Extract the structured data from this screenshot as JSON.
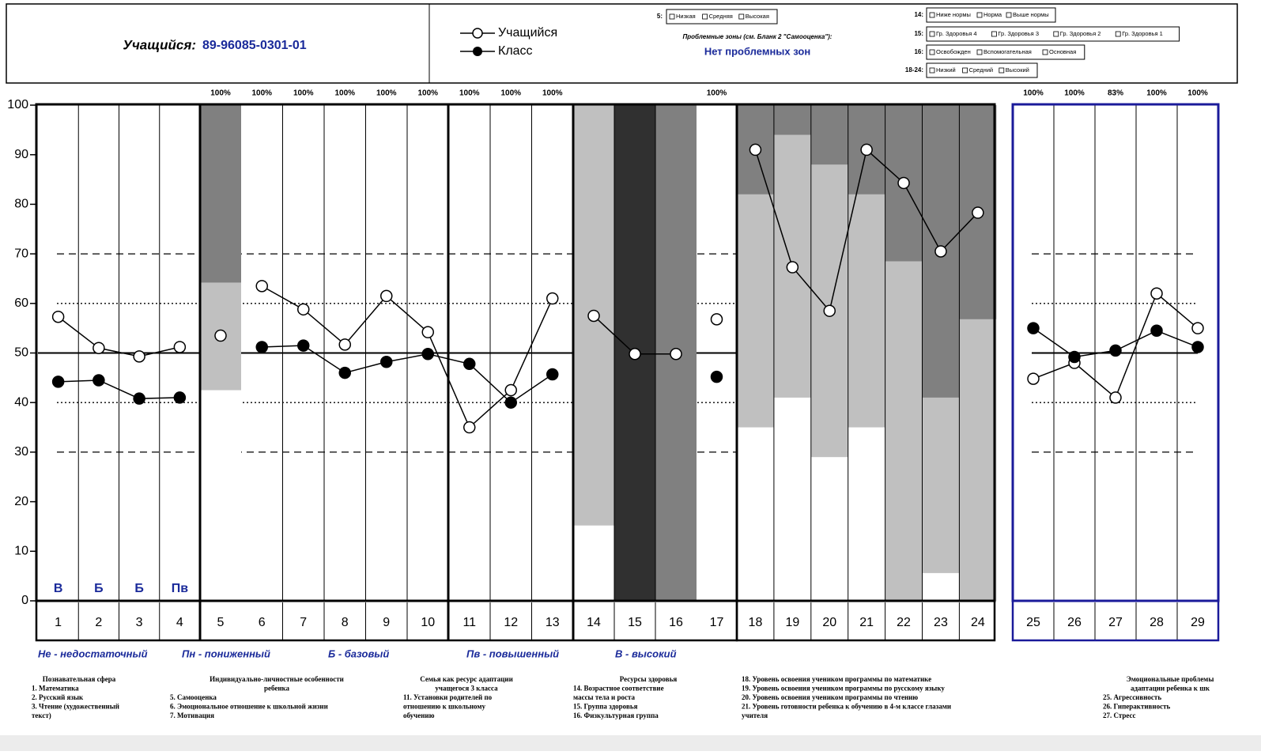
{
  "header": {
    "student_label": "Учащийся:",
    "student_id": "89-96085-0301-01",
    "scale5_label": "5:",
    "scale5_items": [
      "Низкая",
      "Средняя",
      "Высокая"
    ],
    "problem_label": "Проблемные зоны (см. Бланк 2 \"Самооценка\"):",
    "problem_value": "Нет проблемных зон",
    "scales": [
      {
        "label": "14:",
        "items": [
          "Ниже нормы",
          "Норма",
          "Выше нормы"
        ]
      },
      {
        "label": "15:",
        "items": [
          "Гр. Здоровья 4",
          "Гр. Здоровья 3",
          "Гр. Здоровья 2",
          "Гр. Здоровья 1"
        ]
      },
      {
        "label": "16:",
        "items": [
          "Освобожден",
          "Вспомогательная",
          "Основная"
        ]
      },
      {
        "label": "18-24:",
        "items": [
          "Низкий",
          "Средний",
          "Высокий"
        ]
      }
    ]
  },
  "chart_data": {
    "type": "line",
    "ylim": [
      0,
      100
    ],
    "yticks": [
      0,
      10,
      20,
      30,
      40,
      50,
      60,
      70,
      80,
      90,
      100
    ],
    "series_styles": [
      {
        "name": "Учащийся",
        "marker": "open",
        "color": "#000000"
      },
      {
        "name": "Класс",
        "marker": "filled",
        "color": "#000000"
      }
    ],
    "stack_colors": [
      "#ffffff",
      "#c0c0c0",
      "#808080",
      "#303030"
    ],
    "reference_lines": [
      {
        "value": 30,
        "style": "dashed"
      },
      {
        "value": 40,
        "style": "dotted"
      },
      {
        "value": 50,
        "style": "solid"
      },
      {
        "value": 60,
        "style": "dotted"
      },
      {
        "value": 70,
        "style": "dashed"
      }
    ],
    "panels": [
      {
        "categories": [
          "1",
          "2",
          "3",
          "4"
        ],
        "series": [
          [
            57.3,
            51,
            49.3,
            51.2
          ],
          [
            44.2,
            44.5,
            40.8,
            41
          ]
        ],
        "level_labels": [
          "В",
          "Б",
          "Б",
          "Пв"
        ]
      },
      {
        "categories": [
          "5"
        ],
        "series": [
          [
            53.5
          ],
          [
            null
          ]
        ],
        "stack": [
          [
            42.5
          ],
          [
            21.7
          ],
          [
            35.8
          ],
          [
            0
          ]
        ],
        "top_labels": [
          "100%"
        ]
      },
      {
        "categories": [
          "6",
          "7",
          "8",
          "9",
          "10",
          "11",
          "12",
          "13"
        ],
        "series": [
          [
            63.5,
            58.8,
            51.7,
            61.5,
            54.2,
            35,
            42.5,
            61
          ],
          [
            51.2,
            51.5,
            46,
            48.2,
            49.8,
            47.8,
            40,
            45.7
          ]
        ],
        "top_labels": [
          "100%",
          "100%",
          "100%",
          "100%",
          "100%",
          "100%",
          "100%",
          "100%"
        ]
      },
      {
        "categories": [
          "14",
          "15",
          "16"
        ],
        "series": [
          [
            57.5,
            49.8,
            49.8
          ],
          [
            null,
            null,
            null
          ]
        ],
        "stack": [
          [
            15.2,
            0,
            0
          ],
          [
            84.8,
            0,
            0
          ],
          [
            0,
            0,
            100
          ],
          [
            0,
            100,
            0
          ]
        ]
      },
      {
        "categories": [
          "17"
        ],
        "series": [
          [
            56.8
          ],
          [
            45.2
          ]
        ],
        "top_labels": [
          "100%"
        ]
      },
      {
        "categories": [
          "18",
          "19",
          "20",
          "21",
          "22",
          "23",
          "24"
        ],
        "series": [
          [
            91,
            67.3,
            58.5,
            91,
            84.3,
            70.5,
            78.3
          ],
          [
            null,
            null,
            null,
            null,
            null,
            null,
            null
          ]
        ],
        "stack": [
          [
            35,
            41,
            29,
            35,
            0,
            5.6,
            0
          ],
          [
            47,
            53,
            59,
            47,
            68.5,
            35.4,
            56.8
          ],
          [
            18,
            6,
            12,
            18,
            31.5,
            59,
            43.2
          ],
          [
            0,
            0,
            0,
            0,
            0,
            0,
            0
          ]
        ]
      },
      {
        "categories": [
          "25",
          "26",
          "27",
          "28",
          "29"
        ],
        "series": [
          [
            44.8,
            48,
            41,
            62,
            55
          ],
          [
            55,
            49.2,
            50.5,
            54.5,
            51.2
          ]
        ],
        "top_labels": [
          "100%",
          "100%",
          "83%",
          "100%",
          "100%"
        ]
      }
    ]
  },
  "levels": [
    "Не - недостаточный",
    "Пн - пониженный",
    "Б - базовый",
    "Пв - повышенный",
    "В - высокий"
  ],
  "footnotes": [
    [
      "Познавательная сфера",
      "1. Математика",
      "2. Русский язык",
      "3. Чтение (художественный",
      "текст)"
    ],
    [
      "Индивидуально-личностные особенности",
      "ребенка",
      "5. Самооценка",
      "6. Эмоциональное отношение к школьной жизни",
      "7. Мотивация"
    ],
    [
      "Семья как ресурс адаптации",
      "учащегося 3 класса",
      "11. Установки родителей по",
      "отношению к школьному",
      "обучению"
    ],
    [
      "Ресурсы здоровья",
      "14. Возрастное соответствие",
      "массы тела и роста",
      "15. Группа здоровья",
      "16. Физкультурная группа"
    ],
    [
      "18. Уровень освоения учеником программы по математике",
      "19. Уровень освоения учеником программы по русскому языку",
      "20. Уровень освоения учеником программы по чтению",
      "21. Уровень готовности ребенка к обучению в 4-м классе глазами",
      "учителя"
    ],
    [
      "Эмоциональные проблемы",
      "адаптации ребенка к шк",
      "25. Агрессивность",
      "26. Гиперактивность",
      "27. Стресс"
    ]
  ]
}
